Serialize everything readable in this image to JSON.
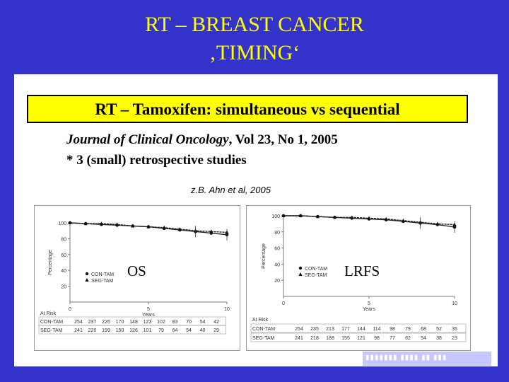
{
  "title": {
    "line1": "RT – BREAST CANCER",
    "line2": "‚TIMING‘"
  },
  "subtitle": "RT – Tamoxifen: simultaneous vs sequential",
  "journal": {
    "name": "Journal of Clinical Oncology",
    "rest": ", Vol 23, No 1, 2005"
  },
  "note": "* 3 (small) retrospective studies",
  "reference": "z.B. Ahn et al, 2005",
  "colors": {
    "frame": "#3333cc",
    "title": "#ffff00",
    "box": "#ffff00"
  },
  "chart_data": [
    {
      "type": "line",
      "label": "OS",
      "ylabel": "Percentage",
      "xlabel": "Years",
      "xlim": [
        0,
        10
      ],
      "ylim": [
        0,
        100
      ],
      "yticks": [
        "0",
        "20",
        "40",
        "60",
        "80",
        "100"
      ],
      "xticks": [
        "0",
        "5",
        "10"
      ],
      "x": [
        0,
        1,
        2,
        3,
        4,
        5,
        6,
        7,
        8,
        9,
        10
      ],
      "series": [
        {
          "name": "CON-TAM",
          "marker": "circle",
          "values": [
            100,
            99,
            98,
            97,
            96,
            95,
            93,
            91,
            89,
            87,
            85
          ]
        },
        {
          "name": "SEG-TAM",
          "marker": "triangle",
          "values": [
            100,
            99,
            99,
            98,
            96,
            95,
            94,
            92,
            90,
            89,
            88
          ]
        }
      ],
      "table": {
        "header": "At Risk",
        "rows": [
          {
            "name": "CON-TAM",
            "values": [
              "254",
              "237",
              "226",
              "170",
              "148",
              "123",
              "102",
              "83",
              "70",
              "54",
              "42"
            ]
          },
          {
            "name": "SEG-TAM",
            "values": [
              "241",
              "220",
              "199",
              "150",
              "126",
              "101",
              "79",
              "64",
              "54",
              "40",
              "29"
            ]
          }
        ]
      }
    },
    {
      "type": "line",
      "label": "LRFS",
      "ylabel": "Percentage",
      "xlabel": "Years",
      "xlim": [
        0,
        10
      ],
      "ylim": [
        0,
        100
      ],
      "yticks": [
        "0",
        "20",
        "40",
        "60",
        "80",
        "100"
      ],
      "xticks": [
        "0",
        "5",
        "10"
      ],
      "x": [
        0,
        1,
        2,
        3,
        4,
        5,
        6,
        7,
        8,
        9,
        10
      ],
      "series": [
        {
          "name": "CON-TAM",
          "marker": "circle",
          "values": [
            100,
            100,
            99,
            98,
            97,
            96,
            95,
            93,
            91,
            89,
            86
          ]
        },
        {
          "name": "SEG-TAM",
          "marker": "triangle",
          "values": [
            100,
            100,
            99,
            98,
            98,
            97,
            96,
            94,
            92,
            90,
            89
          ]
        }
      ],
      "table": {
        "header": "At Risk",
        "rows": [
          {
            "name": "CON-TAM",
            "values": [
              "254",
              "235",
              "213",
              "177",
              "144",
              "114",
              "98",
              "79",
              "68",
              "52",
              "35"
            ]
          },
          {
            "name": "SEG-TAM",
            "values": [
              "241",
              "218",
              "188",
              "155",
              "121",
              "98",
              "77",
              "62",
              "54",
              "38",
              "23"
            ]
          }
        ]
      }
    }
  ]
}
